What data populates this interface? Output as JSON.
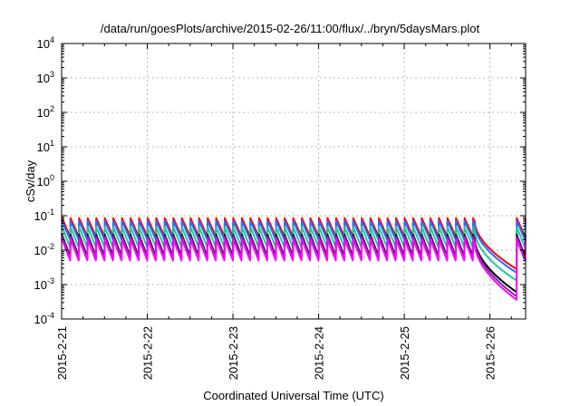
{
  "chart_data": {
    "type": "line",
    "title": "/data/run/goesPlots/archive/2015-02-26/11:00/flux/../bryn/5daysMars.plot",
    "xlabel": "Coordinated Universal Time (UTC)",
    "ylabel": "cSv/day",
    "yscale": "log",
    "ylim": [
      0.0001,
      10000
    ],
    "xlim": [
      "2015-02-21 00:00",
      "2015-02-26 10:00"
    ],
    "grid": true,
    "legend": "none",
    "x_ticks": [
      "2015-2-21",
      "2015-2-22",
      "2015-2-23",
      "2015-2-24",
      "2015-2-25",
      "2015-2-26"
    ],
    "y_ticks": [
      {
        "base": "10",
        "exp": "-4"
      },
      {
        "base": "10",
        "exp": "-3"
      },
      {
        "base": "10",
        "exp": "-2"
      },
      {
        "base": "10",
        "exp": "-1"
      },
      {
        "base": "10",
        "exp": "0"
      },
      {
        "base": "10",
        "exp": "1"
      },
      {
        "base": "10",
        "exp": "2"
      },
      {
        "base": "10",
        "exp": "3"
      },
      {
        "base": "10",
        "exp": "4"
      }
    ],
    "cycle_hours": 2.4,
    "dropout_start": "2015-02-25 19:45",
    "dropout_end": "2015-02-26 07:30",
    "series": [
      {
        "color": "#ff0000",
        "peak": 0.09,
        "trough": 0.025,
        "dropout_low": 0.0028
      },
      {
        "color": "#2b6cff",
        "peak": 0.075,
        "trough": 0.02,
        "dropout_low": 0.0022
      },
      {
        "color": "#1ec8a0",
        "peak": 0.05,
        "trough": 0.012,
        "dropout_low": 0.0013
      },
      {
        "color": "#000000",
        "peak": 0.03,
        "trough": 0.0065,
        "dropout_low": 0.0006
      },
      {
        "color": "#7a2aa0",
        "peak": 0.027,
        "trough": 0.0058,
        "dropout_low": 0.00045
      },
      {
        "color": "#ff00ff",
        "peak": 0.022,
        "trough": 0.005,
        "dropout_low": 0.00036
      }
    ]
  }
}
